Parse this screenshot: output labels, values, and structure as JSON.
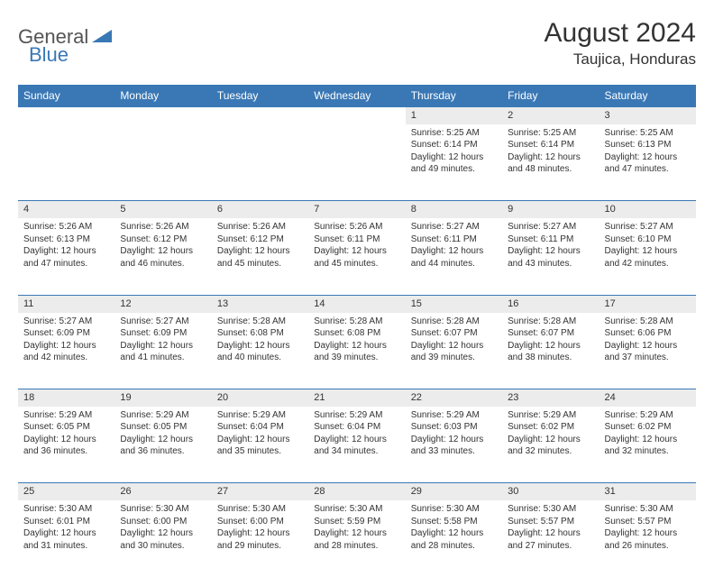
{
  "logo": {
    "general": "General",
    "blue": "Blue"
  },
  "title": "August 2024",
  "location": "Taujica, Honduras",
  "colors": {
    "header_bg": "#3a78b5",
    "header_text": "#ffffff",
    "daynum_bg": "#ececec",
    "border": "#3a78b5",
    "logo_gray": "#555555",
    "logo_blue": "#3a78b5"
  },
  "day_headers": [
    "Sunday",
    "Monday",
    "Tuesday",
    "Wednesday",
    "Thursday",
    "Friday",
    "Saturday"
  ],
  "weeks": [
    {
      "nums": [
        "",
        "",
        "",
        "",
        "1",
        "2",
        "3"
      ],
      "cells": [
        null,
        null,
        null,
        null,
        {
          "sunrise": "Sunrise: 5:25 AM",
          "sunset": "Sunset: 6:14 PM",
          "d1": "Daylight: 12 hours",
          "d2": "and 49 minutes."
        },
        {
          "sunrise": "Sunrise: 5:25 AM",
          "sunset": "Sunset: 6:14 PM",
          "d1": "Daylight: 12 hours",
          "d2": "and 48 minutes."
        },
        {
          "sunrise": "Sunrise: 5:25 AM",
          "sunset": "Sunset: 6:13 PM",
          "d1": "Daylight: 12 hours",
          "d2": "and 47 minutes."
        }
      ]
    },
    {
      "nums": [
        "4",
        "5",
        "6",
        "7",
        "8",
        "9",
        "10"
      ],
      "cells": [
        {
          "sunrise": "Sunrise: 5:26 AM",
          "sunset": "Sunset: 6:13 PM",
          "d1": "Daylight: 12 hours",
          "d2": "and 47 minutes."
        },
        {
          "sunrise": "Sunrise: 5:26 AM",
          "sunset": "Sunset: 6:12 PM",
          "d1": "Daylight: 12 hours",
          "d2": "and 46 minutes."
        },
        {
          "sunrise": "Sunrise: 5:26 AM",
          "sunset": "Sunset: 6:12 PM",
          "d1": "Daylight: 12 hours",
          "d2": "and 45 minutes."
        },
        {
          "sunrise": "Sunrise: 5:26 AM",
          "sunset": "Sunset: 6:11 PM",
          "d1": "Daylight: 12 hours",
          "d2": "and 45 minutes."
        },
        {
          "sunrise": "Sunrise: 5:27 AM",
          "sunset": "Sunset: 6:11 PM",
          "d1": "Daylight: 12 hours",
          "d2": "and 44 minutes."
        },
        {
          "sunrise": "Sunrise: 5:27 AM",
          "sunset": "Sunset: 6:11 PM",
          "d1": "Daylight: 12 hours",
          "d2": "and 43 minutes."
        },
        {
          "sunrise": "Sunrise: 5:27 AM",
          "sunset": "Sunset: 6:10 PM",
          "d1": "Daylight: 12 hours",
          "d2": "and 42 minutes."
        }
      ]
    },
    {
      "nums": [
        "11",
        "12",
        "13",
        "14",
        "15",
        "16",
        "17"
      ],
      "cells": [
        {
          "sunrise": "Sunrise: 5:27 AM",
          "sunset": "Sunset: 6:09 PM",
          "d1": "Daylight: 12 hours",
          "d2": "and 42 minutes."
        },
        {
          "sunrise": "Sunrise: 5:27 AM",
          "sunset": "Sunset: 6:09 PM",
          "d1": "Daylight: 12 hours",
          "d2": "and 41 minutes."
        },
        {
          "sunrise": "Sunrise: 5:28 AM",
          "sunset": "Sunset: 6:08 PM",
          "d1": "Daylight: 12 hours",
          "d2": "and 40 minutes."
        },
        {
          "sunrise": "Sunrise: 5:28 AM",
          "sunset": "Sunset: 6:08 PM",
          "d1": "Daylight: 12 hours",
          "d2": "and 39 minutes."
        },
        {
          "sunrise": "Sunrise: 5:28 AM",
          "sunset": "Sunset: 6:07 PM",
          "d1": "Daylight: 12 hours",
          "d2": "and 39 minutes."
        },
        {
          "sunrise": "Sunrise: 5:28 AM",
          "sunset": "Sunset: 6:07 PM",
          "d1": "Daylight: 12 hours",
          "d2": "and 38 minutes."
        },
        {
          "sunrise": "Sunrise: 5:28 AM",
          "sunset": "Sunset: 6:06 PM",
          "d1": "Daylight: 12 hours",
          "d2": "and 37 minutes."
        }
      ]
    },
    {
      "nums": [
        "18",
        "19",
        "20",
        "21",
        "22",
        "23",
        "24"
      ],
      "cells": [
        {
          "sunrise": "Sunrise: 5:29 AM",
          "sunset": "Sunset: 6:05 PM",
          "d1": "Daylight: 12 hours",
          "d2": "and 36 minutes."
        },
        {
          "sunrise": "Sunrise: 5:29 AM",
          "sunset": "Sunset: 6:05 PM",
          "d1": "Daylight: 12 hours",
          "d2": "and 36 minutes."
        },
        {
          "sunrise": "Sunrise: 5:29 AM",
          "sunset": "Sunset: 6:04 PM",
          "d1": "Daylight: 12 hours",
          "d2": "and 35 minutes."
        },
        {
          "sunrise": "Sunrise: 5:29 AM",
          "sunset": "Sunset: 6:04 PM",
          "d1": "Daylight: 12 hours",
          "d2": "and 34 minutes."
        },
        {
          "sunrise": "Sunrise: 5:29 AM",
          "sunset": "Sunset: 6:03 PM",
          "d1": "Daylight: 12 hours",
          "d2": "and 33 minutes."
        },
        {
          "sunrise": "Sunrise: 5:29 AM",
          "sunset": "Sunset: 6:02 PM",
          "d1": "Daylight: 12 hours",
          "d2": "and 32 minutes."
        },
        {
          "sunrise": "Sunrise: 5:29 AM",
          "sunset": "Sunset: 6:02 PM",
          "d1": "Daylight: 12 hours",
          "d2": "and 32 minutes."
        }
      ]
    },
    {
      "nums": [
        "25",
        "26",
        "27",
        "28",
        "29",
        "30",
        "31"
      ],
      "cells": [
        {
          "sunrise": "Sunrise: 5:30 AM",
          "sunset": "Sunset: 6:01 PM",
          "d1": "Daylight: 12 hours",
          "d2": "and 31 minutes."
        },
        {
          "sunrise": "Sunrise: 5:30 AM",
          "sunset": "Sunset: 6:00 PM",
          "d1": "Daylight: 12 hours",
          "d2": "and 30 minutes."
        },
        {
          "sunrise": "Sunrise: 5:30 AM",
          "sunset": "Sunset: 6:00 PM",
          "d1": "Daylight: 12 hours",
          "d2": "and 29 minutes."
        },
        {
          "sunrise": "Sunrise: 5:30 AM",
          "sunset": "Sunset: 5:59 PM",
          "d1": "Daylight: 12 hours",
          "d2": "and 28 minutes."
        },
        {
          "sunrise": "Sunrise: 5:30 AM",
          "sunset": "Sunset: 5:58 PM",
          "d1": "Daylight: 12 hours",
          "d2": "and 28 minutes."
        },
        {
          "sunrise": "Sunrise: 5:30 AM",
          "sunset": "Sunset: 5:57 PM",
          "d1": "Daylight: 12 hours",
          "d2": "and 27 minutes."
        },
        {
          "sunrise": "Sunrise: 5:30 AM",
          "sunset": "Sunset: 5:57 PM",
          "d1": "Daylight: 12 hours",
          "d2": "and 26 minutes."
        }
      ]
    }
  ]
}
